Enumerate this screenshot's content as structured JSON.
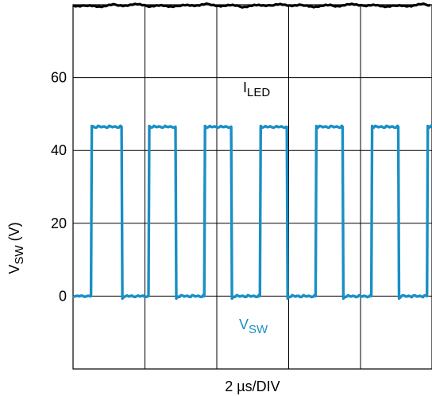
{
  "chart_data": {
    "type": "line",
    "title": "",
    "xlabel": "2 µs/DIV",
    "ylabel": {
      "main": "V",
      "sub": "SW",
      "unit": " (V)"
    },
    "yticks": [
      0,
      20,
      40,
      60
    ],
    "ylim": [
      -20,
      80
    ],
    "x_divisions": 5,
    "us_per_div": 2,
    "grid": true,
    "legend": "none",
    "series": [
      {
        "name": {
          "main": "I",
          "sub": "LED"
        },
        "color": "#000000",
        "level_v": 79.8,
        "description": "nearly flat trace, slight ripple"
      },
      {
        "name": {
          "main": "V",
          "sub": "SW"
        },
        "color": "#1a8fc4",
        "shape": "square wave",
        "low_v": 0,
        "high_v": 46.5,
        "period_us": 1.6,
        "rise_times_us": [
          0.5,
          2.1,
          3.65,
          5.2,
          6.75,
          8.3,
          9.85
        ],
        "fall_times_us": [
          1.35,
          2.85,
          4.4,
          5.95,
          7.5,
          9.05
        ]
      }
    ]
  }
}
